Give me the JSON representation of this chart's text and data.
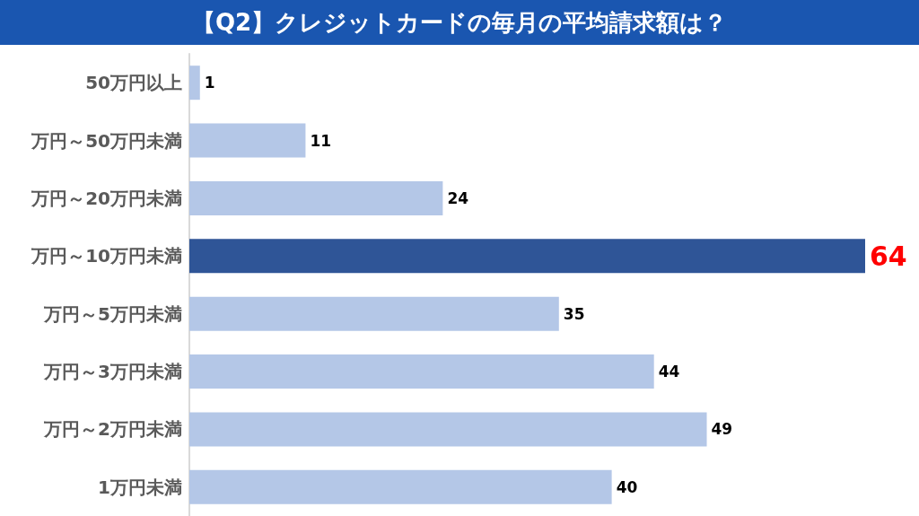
{
  "chart_data": {
    "type": "bar",
    "orientation": "horizontal",
    "title": "【Q2】クレジットカードの毎月の平均請求額は？",
    "categories": [
      "50万円以上",
      "万円～50万円未満",
      "万円～20万円未満",
      "万円～10万円未満",
      "万円～5万円未満",
      "万円～3万円未満",
      "万円～2万円未満",
      "1万円未満"
    ],
    "values": [
      1,
      11,
      24,
      64,
      35,
      44,
      49,
      40
    ],
    "colors": [
      "#b4c7e7",
      "#b4c7e7",
      "#b4c7e7",
      "#2f5597",
      "#b4c7e7",
      "#b4c7e7",
      "#b4c7e7",
      "#b4c7e7"
    ],
    "data_labels": true
  }
}
